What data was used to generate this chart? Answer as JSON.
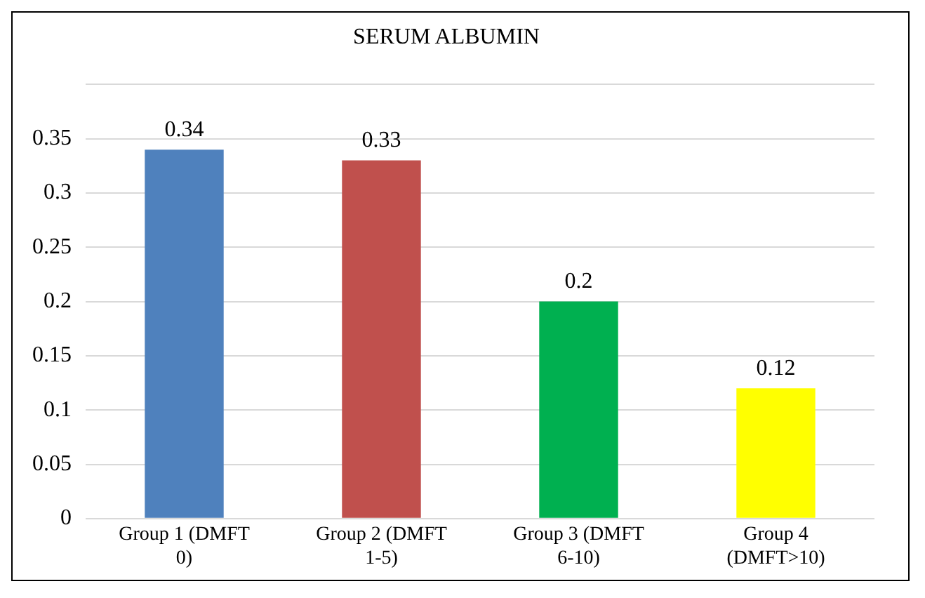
{
  "chart_data": {
    "type": "bar",
    "title": "SERUM ALBUMIN",
    "categories": [
      "Group 1 (DMFT 0)",
      "Group 2 (DMFT 1-5)",
      "Group 3 (DMFT 6-10)",
      "Group 4 (DMFT>10)"
    ],
    "values": [
      0.34,
      0.33,
      0.2,
      0.12
    ],
    "colors": [
      "#4f81bd",
      "#c0504d",
      "#00b050",
      "#ffff00"
    ],
    "ylim": [
      0,
      0.4
    ],
    "yticks": [
      0,
      0.05,
      0.1,
      0.15,
      0.2,
      0.25,
      0.3,
      0.35,
      {
        "value": 0.4,
        "label": null
      }
    ],
    "grid": "y",
    "data_labels": true,
    "legend": false
  }
}
